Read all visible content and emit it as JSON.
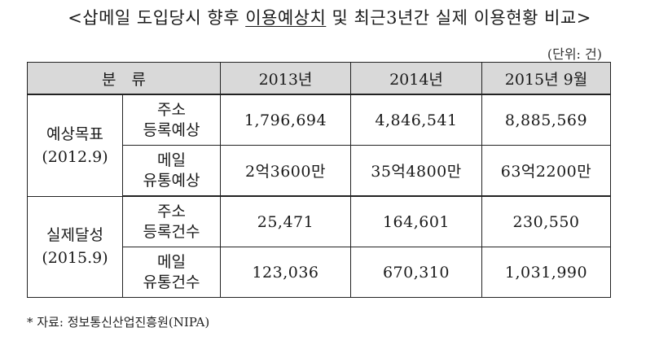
{
  "title": {
    "prefix": "<삽메일 도입당시 향후 ",
    "underlined": "이용예상치",
    "suffix": " 및 최근3년간 실제 이용현황 비교>"
  },
  "unit_label": "(단위: 건)",
  "table": {
    "headers": [
      "분　류",
      "2013년",
      "2014년",
      "2015년 9월"
    ],
    "groups": [
      {
        "label_line1": "예상목표",
        "label_line2": "(2012.9)",
        "rows": [
          {
            "sub_line1": "주소",
            "sub_line2": "등록예상",
            "values": [
              "1,796,694",
              "4,846,541",
              "8,885,569"
            ]
          },
          {
            "sub_line1": "메일",
            "sub_line2": "유통예상",
            "values": [
              "2억3600만",
              "35억4800만",
              "63억2200만"
            ]
          }
        ]
      },
      {
        "label_line1": "실제달성",
        "label_line2": "(2015.9)",
        "rows": [
          {
            "sub_line1": "주소",
            "sub_line2": "등록건수",
            "values": [
              "25,471",
              "164,601",
              "230,550"
            ]
          },
          {
            "sub_line1": "메일",
            "sub_line2": "유통건수",
            "values": [
              "123,036",
              "670,310",
              "1,031,990"
            ]
          }
        ]
      }
    ]
  },
  "source_note": "* 자료: 정보통신산업진흥원(NIPA)"
}
